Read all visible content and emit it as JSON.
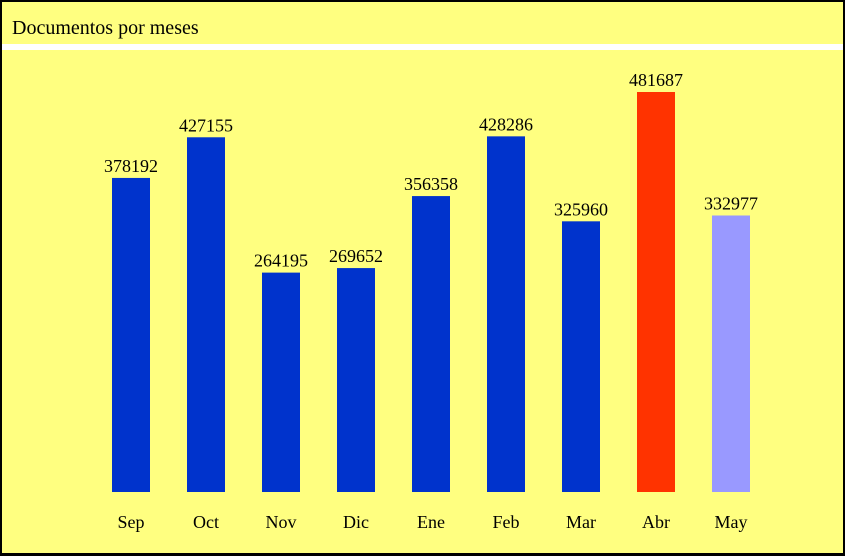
{
  "chart_data": {
    "type": "bar",
    "title": "Documentos por meses",
    "categories": [
      "Sep",
      "Oct",
      "Nov",
      "Dic",
      "Ene",
      "Feb",
      "Mar",
      "Abr",
      "May"
    ],
    "values": [
      378192,
      427155,
      264195,
      269652,
      356358,
      428286,
      325960,
      481687,
      332977
    ],
    "colors": [
      "#0033cc",
      "#0033cc",
      "#0033cc",
      "#0033cc",
      "#0033cc",
      "#0033cc",
      "#0033cc",
      "#ff3300",
      "#9999ff"
    ]
  }
}
